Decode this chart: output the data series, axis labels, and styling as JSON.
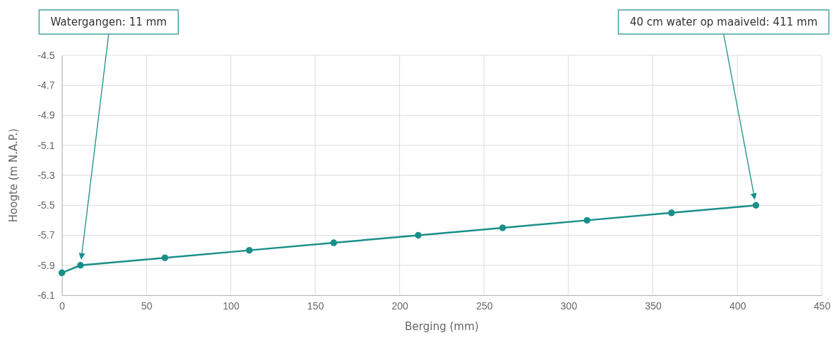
{
  "chart_data": {
    "type": "line",
    "xlabel": "Berging (mm)",
    "ylabel": "Hoogte (m N.A.P.)",
    "x": [
      0,
      11,
      61,
      111,
      161,
      211,
      261,
      311,
      361,
      411
    ],
    "series": [
      {
        "color": "#1a8f8a",
        "values": [
          -5.95,
          -5.9,
          -5.85,
          -5.8,
          -5.75,
          -5.7,
          -5.65,
          -5.6,
          -5.55,
          -5.5
        ]
      }
    ],
    "xlim": [
      0,
      450
    ],
    "xticks": [
      0,
      50,
      100,
      150,
      200,
      250,
      300,
      350,
      400,
      450
    ],
    "ylim": [
      -6.1,
      -4.5
    ],
    "yticks": [
      -6.1,
      -5.9,
      -5.7,
      -5.5,
      -5.3,
      -5.1,
      -4.9,
      -4.7,
      -4.5
    ],
    "grid": true,
    "marker": "circle",
    "line_style": "solid",
    "annotations": [
      {
        "text": "Watergangen: 11 mm",
        "x": 11,
        "y": -5.9
      },
      {
        "text": "40 cm water op maaiveld: 411 mm",
        "x": 411,
        "y": -5.5
      }
    ]
  }
}
